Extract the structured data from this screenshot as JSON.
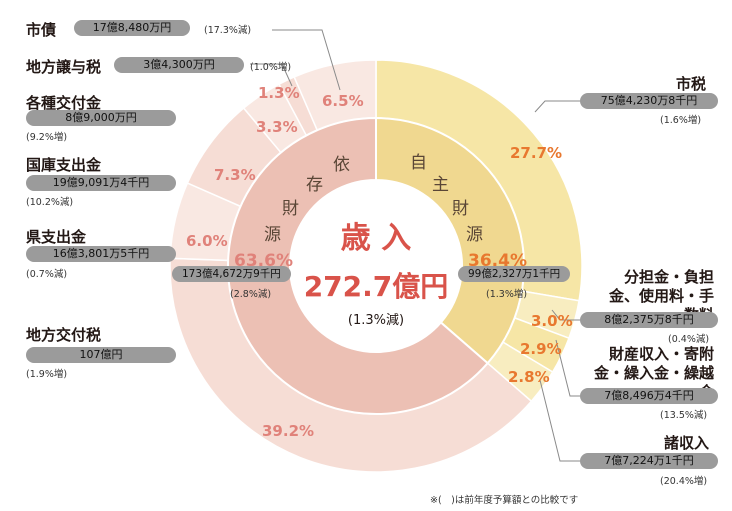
{
  "center": {
    "title": "歳 入",
    "total": "272.7億円",
    "change": "(1.3%減)"
  },
  "groups": {
    "self": {
      "label_chars": [
        "自",
        "主",
        "財",
        "源"
      ],
      "percent": "36.4%",
      "amount": "99億2,327万1千円",
      "change": "(1.3%増)",
      "value": 36.4
    },
    "dependent": {
      "label_chars": [
        "依",
        "存",
        "財",
        "源"
      ],
      "percent": "63.6%",
      "amount": "173億4,672万9千円",
      "change": "(2.8%減)",
      "value": 63.6
    }
  },
  "items": [
    {
      "key": "city-tax",
      "name": "市税",
      "amount": "75億4,230万8千円",
      "change": "(1.6%増)",
      "percent": "27.7%",
      "value": 27.7
    },
    {
      "key": "fees",
      "name": "分担金・負担金、使用料・手数料",
      "amount": "8億2,375万8千円",
      "change": "(0.4%減)",
      "percent": "3.0%",
      "value": 3.0
    },
    {
      "key": "property",
      "name": "財産収入・寄附金・繰入金・繰越金",
      "amount": "7億8,496万4千円",
      "change": "(13.5%減)",
      "percent": "2.9%",
      "value": 2.9
    },
    {
      "key": "misc",
      "name": "諸収入",
      "amount": "7億7,224万1千円",
      "change": "(20.4%増)",
      "percent": "2.8%",
      "value": 2.8
    },
    {
      "key": "local-allocation",
      "name": "地方交付税",
      "amount": "107億円",
      "change": "(1.9%増)",
      "percent": "39.2%",
      "value": 39.2
    },
    {
      "key": "pref-disbursement",
      "name": "県支出金",
      "amount": "16億3,801万5千円",
      "change": "(0.7%減)",
      "percent": "6.0%",
      "value": 6.0
    },
    {
      "key": "national-disbursement",
      "name": "国庫支出金",
      "amount": "19億9,091万4千円",
      "change": "(10.2%減)",
      "percent": "7.3%",
      "value": 7.3
    },
    {
      "key": "grants",
      "name": "各種交付金",
      "amount": "8億9,000万円",
      "change": "(9.2%増)",
      "percent": "3.3%",
      "value": 3.3
    },
    {
      "key": "transfer-tax",
      "name": "地方譲与税",
      "amount": "3億4,300万円",
      "change": "(1.0%増)",
      "percent": "1.3%",
      "value": 1.3
    },
    {
      "key": "bonds",
      "name": "市債",
      "amount": "17億8,480万円",
      "change": "(17.3%減)",
      "percent": "6.5%",
      "value": 6.5
    }
  ],
  "footnote": "※(　)は前年度予算額との比較です",
  "colors": {
    "self_outer": [
      "#f6e6a6",
      "#f8edc0"
    ],
    "self_inner": "#f0d890",
    "dep_outer": [
      "#f6ddd5",
      "#f9e8e2"
    ],
    "dep_inner": "#ecc0b4",
    "accent_orange": "#e8782f",
    "accent_pink": "#e0827a",
    "title_red": "#d9534a"
  },
  "chart_data": {
    "type": "pie",
    "title": "歳 入",
    "total_label": "272.7億円",
    "inner_ring": {
      "categories": [
        "自主財源",
        "依存財源"
      ],
      "values": [
        36.4,
        63.6
      ]
    },
    "outer_ring": {
      "categories": [
        "市税",
        "分担金・負担金、使用料・手数料",
        "財産収入・寄附金・繰入金・繰越金",
        "諸収入",
        "地方交付税",
        "県支出金",
        "国庫支出金",
        "各種交付金",
        "地方譲与税",
        "市債"
      ],
      "values": [
        27.7,
        3.0,
        2.9,
        2.8,
        39.2,
        6.0,
        7.3,
        3.3,
        1.3,
        6.5
      ]
    }
  }
}
